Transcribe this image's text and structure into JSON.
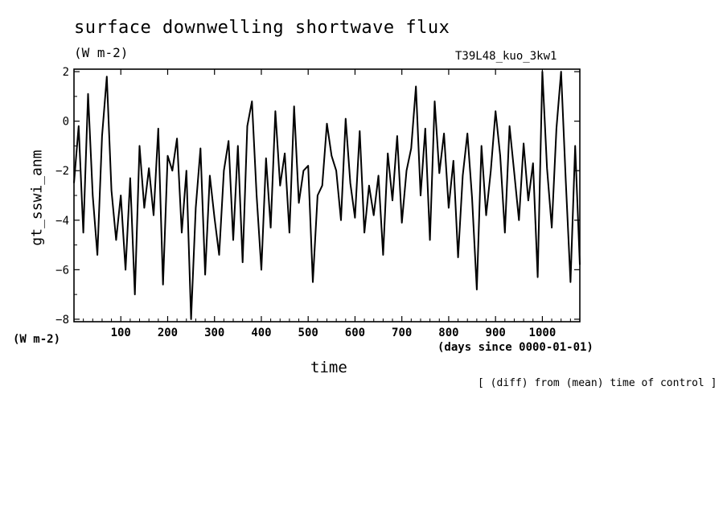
{
  "chart_data": {
    "type": "line",
    "title": "surface downwelling shortwave flux",
    "units": "(W m-2)",
    "run_label": "T39L48_kuo_3kw1",
    "ylabel": "gt_sswi_anm",
    "yunits": "(W m-2)",
    "xlabel": "time",
    "xunits": "(days since 0000-01-01)",
    "note": "[ (diff) from (mean) time of control ]",
    "xlim": [
      0,
      1080
    ],
    "ylim": [
      -8.1,
      2.1
    ],
    "xticks": [
      100,
      200,
      300,
      400,
      500,
      600,
      700,
      800,
      900,
      1000
    ],
    "yticks": [
      -8,
      -6,
      -4,
      -2,
      0,
      2
    ],
    "xtick_labels": [
      "100",
      "200",
      "300",
      "400",
      "500",
      "600",
      "700",
      "800",
      "900",
      "1000"
    ],
    "ytick_labels": [
      "−8",
      "−6",
      "−4",
      "−2",
      "0",
      "2"
    ],
    "grid": false,
    "series": [
      {
        "color": "#000000",
        "x": [
          0,
          10,
          20,
          30,
          40,
          50,
          60,
          70,
          80,
          90,
          100,
          110,
          120,
          130,
          140,
          150,
          160,
          170,
          180,
          190,
          200,
          210,
          220,
          230,
          240,
          250,
          260,
          270,
          280,
          290,
          300,
          310,
          320,
          330,
          340,
          350,
          360,
          370,
          380,
          390,
          400,
          410,
          420,
          430,
          440,
          450,
          460,
          470,
          480,
          490,
          500,
          510,
          520,
          530,
          540,
          550,
          560,
          570,
          580,
          590,
          600,
          610,
          620,
          630,
          640,
          650,
          660,
          670,
          680,
          690,
          700,
          710,
          720,
          730,
          740,
          750,
          760,
          770,
          780,
          790,
          800,
          810,
          820,
          830,
          840,
          850,
          860,
          870,
          880,
          890,
          900,
          910,
          920,
          930,
          940,
          950,
          960,
          970,
          980,
          990,
          1000,
          1010,
          1020,
          1030,
          1040,
          1050,
          1060,
          1070,
          1080
        ],
        "y": [
          -2.5,
          -0.2,
          -4.5,
          1.1,
          -3.0,
          -5.4,
          -0.6,
          1.8,
          -2.8,
          -4.8,
          -3.0,
          -6.0,
          -2.3,
          -7.0,
          -1.0,
          -3.5,
          -1.9,
          -3.8,
          -0.3,
          -6.6,
          -1.4,
          -2.0,
          -0.7,
          -4.5,
          -2.0,
          -8.0,
          -3.5,
          -1.1,
          -6.2,
          -2.2,
          -3.9,
          -5.4,
          -2.0,
          -0.8,
          -4.8,
          -1.0,
          -5.7,
          -0.2,
          0.8,
          -3.0,
          -6.0,
          -1.5,
          -4.3,
          0.4,
          -2.6,
          -1.3,
          -4.5,
          0.6,
          -3.3,
          -2.0,
          -1.8,
          -6.5,
          -3.0,
          -2.6,
          -0.1,
          -1.4,
          -2.0,
          -4.0,
          0.1,
          -2.5,
          -3.9,
          -0.4,
          -4.5,
          -2.6,
          -3.8,
          -2.2,
          -5.4,
          -1.3,
          -3.2,
          -0.6,
          -4.1,
          -2.0,
          -1.1,
          1.4,
          -3.0,
          -0.3,
          -4.8,
          0.8,
          -2.1,
          -0.5,
          -3.5,
          -1.6,
          -5.5,
          -2.2,
          -0.5,
          -3.1,
          -6.8,
          -1.0,
          -3.8,
          -2.0,
          0.4,
          -1.4,
          -4.5,
          -0.2,
          -2.1,
          -4.0,
          -0.9,
          -3.2,
          -1.7,
          -6.3,
          2.0,
          -1.9,
          -4.3,
          -0.3,
          2.0,
          -2.4,
          -6.5,
          -1.0,
          -5.8
        ]
      }
    ]
  }
}
